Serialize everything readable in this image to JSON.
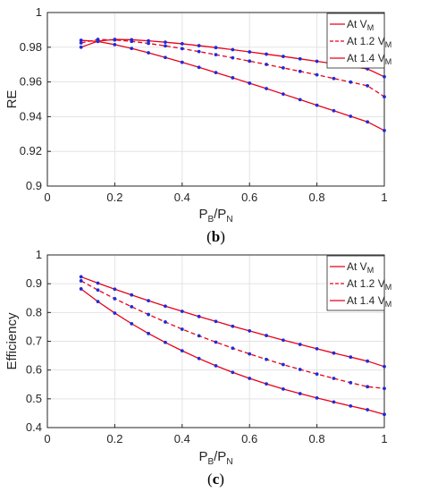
{
  "colors": {
    "line": "#e8001a",
    "marker": "#1f2bd8",
    "grid": "#e3e3e3",
    "axis": "#262626"
  },
  "chart_data": [
    {
      "type": "line",
      "panel_label": "(b)",
      "ylabel": "RE",
      "xlabel": {
        "main_a": "P",
        "sub_a": "B",
        "sep": "/",
        "main_b": "P",
        "sub_b": "N"
      },
      "xlim": [
        0,
        1
      ],
      "ylim": [
        0.9,
        1.0
      ],
      "xticks": [
        "0",
        "0.2",
        "0.4",
        "0.6",
        "0.8",
        "1"
      ],
      "yticks": [
        "0.9",
        "0.92",
        "0.94",
        "0.96",
        "0.98",
        "1"
      ],
      "grid": true,
      "legend_position": "top-right",
      "x": [
        0.1,
        0.15,
        0.2,
        0.25,
        0.3,
        0.35,
        0.4,
        0.45,
        0.5,
        0.55,
        0.6,
        0.65,
        0.7,
        0.75,
        0.8,
        0.85,
        0.9,
        0.95,
        1.0
      ],
      "series": [
        {
          "label_main": "At V",
          "label_sub": "M",
          "dash": "solid",
          "values": [
            0.984,
            0.9833,
            0.9815,
            0.9793,
            0.9768,
            0.9741,
            0.9713,
            0.9684,
            0.9654,
            0.9624,
            0.9593,
            0.9562,
            0.953,
            0.9498,
            0.9466,
            0.9434,
            0.9402,
            0.937,
            0.932
          ]
        },
        {
          "label_main": "At 1.2 V",
          "label_sub": "M",
          "dash": "dashed",
          "values": [
            0.9825,
            0.9845,
            0.9842,
            0.9834,
            0.9822,
            0.9808,
            0.9792,
            0.9775,
            0.9757,
            0.9739,
            0.972,
            0.9701,
            0.9681,
            0.9661,
            0.9641,
            0.962,
            0.9599,
            0.9578,
            0.9515
          ]
        },
        {
          "label_main": "At 1.4 V",
          "label_sub": "M",
          "dash": "solid",
          "values": [
            0.98,
            0.9835,
            0.9845,
            0.9843,
            0.9837,
            0.9829,
            0.982,
            0.9809,
            0.9798,
            0.9786,
            0.9773,
            0.976,
            0.9747,
            0.9733,
            0.9719,
            0.9705,
            0.969,
            0.9675,
            0.963
          ]
        }
      ]
    },
    {
      "type": "line",
      "panel_label": "(c)",
      "ylabel": "Efficiency",
      "xlabel": {
        "main_a": "P",
        "sub_a": "B",
        "sep": "/",
        "main_b": "P",
        "sub_b": "N"
      },
      "xlim": [
        0,
        1
      ],
      "ylim": [
        0.4,
        1.0
      ],
      "xticks": [
        "0",
        "0.2",
        "0.4",
        "0.6",
        "0.8",
        "1"
      ],
      "yticks": [
        "0.4",
        "0.5",
        "0.6",
        "0.7",
        "0.8",
        "0.9",
        "1"
      ],
      "grid": true,
      "legend_position": "top-right",
      "x": [
        0.1,
        0.15,
        0.2,
        0.25,
        0.3,
        0.35,
        0.4,
        0.45,
        0.5,
        0.55,
        0.6,
        0.65,
        0.7,
        0.75,
        0.8,
        0.85,
        0.9,
        0.95,
        1.0
      ],
      "series": [
        {
          "label_main": "At V",
          "label_sub": "M",
          "dash": "solid",
          "values": [
            0.882,
            0.838,
            0.798,
            0.761,
            0.727,
            0.696,
            0.667,
            0.64,
            0.615,
            0.592,
            0.571,
            0.552,
            0.534,
            0.518,
            0.503,
            0.489,
            0.475,
            0.462,
            0.446
          ]
        },
        {
          "label_main": "At 1.2 V",
          "label_sub": "M",
          "dash": "dashed",
          "values": [
            0.91,
            0.878,
            0.848,
            0.82,
            0.793,
            0.767,
            0.742,
            0.719,
            0.697,
            0.676,
            0.656,
            0.637,
            0.619,
            0.602,
            0.586,
            0.571,
            0.556,
            0.542,
            0.536
          ]
        },
        {
          "label_main": "At 1.4 V",
          "label_sub": "M",
          "dash": "solid",
          "values": [
            0.924,
            0.902,
            0.881,
            0.861,
            0.841,
            0.822,
            0.804,
            0.786,
            0.769,
            0.752,
            0.736,
            0.72,
            0.704,
            0.689,
            0.674,
            0.659,
            0.645,
            0.631,
            0.612
          ]
        }
      ]
    }
  ]
}
